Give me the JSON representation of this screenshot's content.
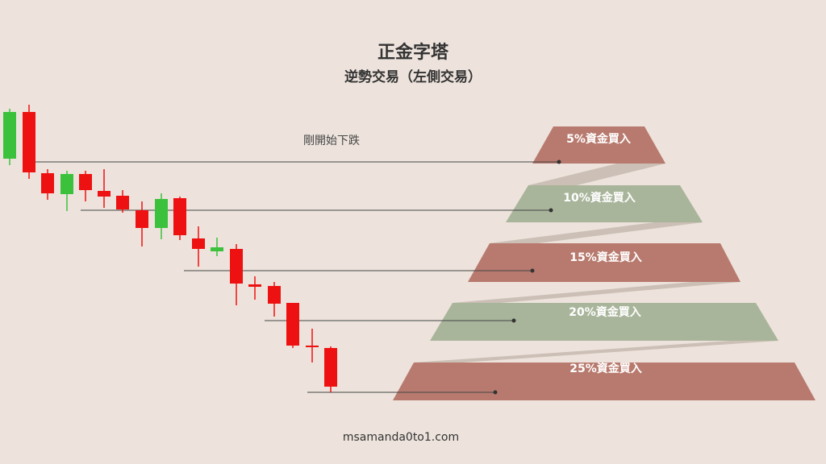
{
  "header": {
    "title": "正金字塔",
    "subtitle": "逆勢交易（左側交易）"
  },
  "annotation": "剛開始下跌",
  "tiers": [
    {
      "label": "5%資金買入"
    },
    {
      "label": "10%資金買入"
    },
    {
      "label": "15%資金買入"
    },
    {
      "label": "20%資金買入"
    },
    {
      "label": "25%資金買入"
    }
  ],
  "footer": "msamanda0to1.com"
}
